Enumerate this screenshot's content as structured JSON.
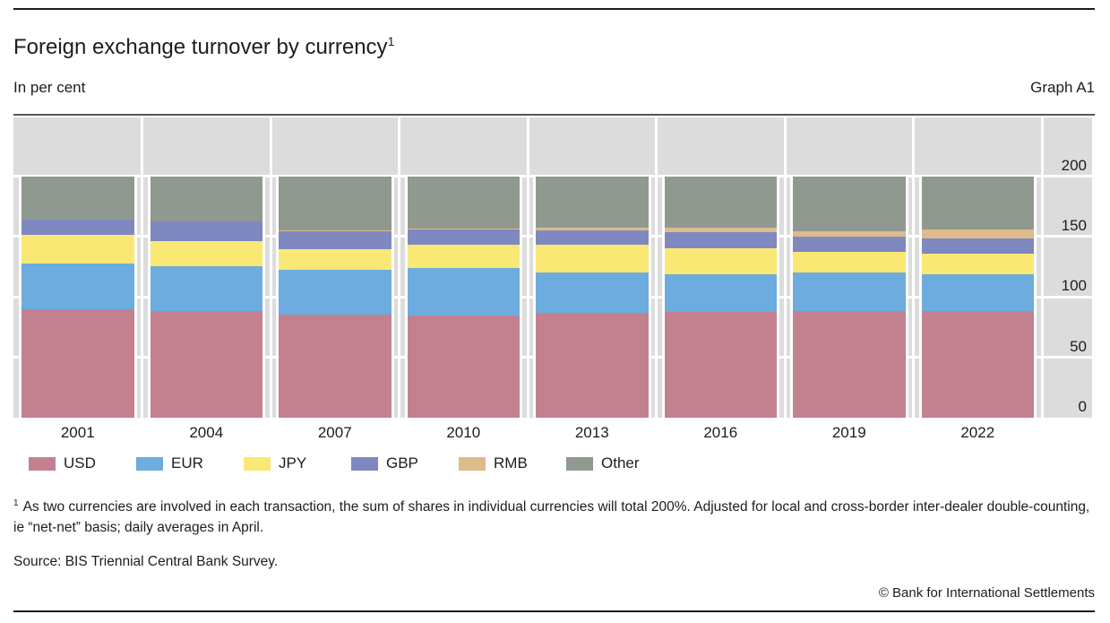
{
  "header": {
    "title": "Foreign exchange turnover by currency",
    "title_footnote_marker": "1",
    "unit_label": "In per cent",
    "graph_label": "Graph A1"
  },
  "footer": {
    "footnote_marker": "1",
    "footnote_text": "As two currencies are involved in each transaction, the sum of shares in individual currencies will total 200%. Adjusted for local and cross-border inter-dealer double-counting, ie “net-net” basis; daily averages in April.",
    "source_text": "Source: BIS Triennial Central Bank Survey.",
    "copyright_text": "© Bank for International Settlements"
  },
  "colors": {
    "plot_background": "#dcdcdc",
    "gridline": "#ffffff",
    "text": "#1d1d1b",
    "top_rule": "#1a1a1a",
    "header_rule": "#55565a"
  },
  "chart_data": {
    "type": "bar",
    "stacked": true,
    "title": "Foreign exchange turnover by currency",
    "units_label": "In per cent",
    "graph_label": "Graph A1",
    "xlabel": "",
    "ylabel": "In per cent",
    "categories": [
      "2001",
      "2004",
      "2007",
      "2010",
      "2013",
      "2016",
      "2019",
      "2022"
    ],
    "series": [
      {
        "name": "USD",
        "color": "#c3818f",
        "values": [
          89.9,
          88.0,
          85.6,
          84.9,
          87.0,
          87.6,
          88.3,
          88.5
        ]
      },
      {
        "name": "EUR",
        "color": "#6cacde",
        "values": [
          37.9,
          37.4,
          37.0,
          39.0,
          33.4,
          31.4,
          32.3,
          30.5
        ]
      },
      {
        "name": "JPY",
        "color": "#fae875",
        "values": [
          23.5,
          20.8,
          17.2,
          19.0,
          23.0,
          21.6,
          16.8,
          16.7
        ]
      },
      {
        "name": "GBP",
        "color": "#8088c0",
        "values": [
          13.0,
          16.5,
          14.9,
          12.9,
          11.8,
          12.8,
          12.8,
          12.9
        ]
      },
      {
        "name": "RMB",
        "color": "#ddbb8c",
        "values": [
          0.0,
          0.1,
          0.5,
          0.9,
          2.2,
          4.0,
          4.3,
          7.0
        ]
      },
      {
        "name": "Other",
        "color": "#8f9990",
        "values": [
          35.7,
          37.2,
          44.8,
          43.3,
          42.6,
          42.6,
          45.5,
          44.4
        ]
      }
    ],
    "yticks": [
      0,
      50,
      100,
      150,
      200
    ],
    "ylim": [
      0,
      248
    ],
    "grid": true,
    "legend_position": "bottom",
    "note": "stacked shares sum to 200"
  }
}
